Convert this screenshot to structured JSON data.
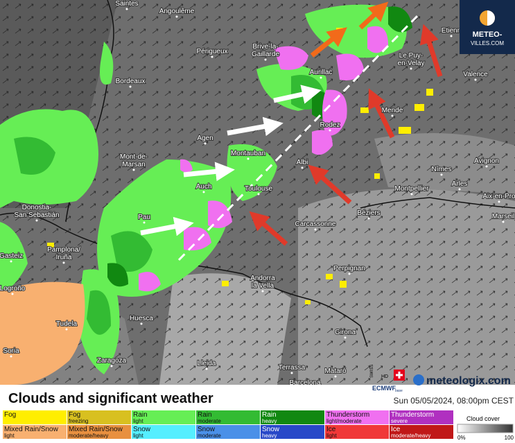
{
  "logo": {
    "line1": "METEO-",
    "line2": "VILLES.COM"
  },
  "cities": [
    {
      "lines": [
        "Saintes"
      ]
    },
    {
      "lines": [
        "Angoulême"
      ]
    },
    {
      "lines": [
        "Périgueux"
      ]
    },
    {
      "lines": [
        "Brive-la-",
        "Gaillarde"
      ]
    },
    {
      "lines": [
        "Aurillac"
      ]
    },
    {
      "lines": [
        "Etienn"
      ]
    },
    {
      "lines": [
        "Le Puy-",
        "en-Velay"
      ]
    },
    {
      "lines": [
        "Valence"
      ]
    },
    {
      "lines": [
        "Bordeaux"
      ]
    },
    {
      "lines": [
        "Mende"
      ]
    },
    {
      "lines": [
        "Rodez"
      ]
    },
    {
      "lines": [
        "Agen"
      ]
    },
    {
      "lines": [
        "Mont-de-",
        "Marsan"
      ]
    },
    {
      "lines": [
        "Montauban"
      ]
    },
    {
      "lines": [
        "Albi"
      ]
    },
    {
      "lines": [
        "Nîmes"
      ]
    },
    {
      "lines": [
        "Avignon"
      ]
    },
    {
      "lines": [
        "Auch"
      ]
    },
    {
      "lines": [
        "Toulouse"
      ]
    },
    {
      "lines": [
        "Arles"
      ]
    },
    {
      "lines": [
        "Montpellier"
      ]
    },
    {
      "lines": [
        "Aix-en-Pro"
      ]
    },
    {
      "lines": [
        "Béziers"
      ]
    },
    {
      "lines": [
        "Marseil"
      ]
    },
    {
      "lines": [
        "Carcassonne"
      ]
    },
    {
      "lines": [
        "Pau"
      ]
    },
    {
      "lines": [
        "Donostia-",
        "San Sebastián"
      ]
    },
    {
      "lines": [
        "Pamplona/",
        "Iruña"
      ]
    },
    {
      "lines": [
        "Gasteiz"
      ]
    },
    {
      "lines": [
        "Perpignan"
      ]
    },
    {
      "lines": [
        "Andorra",
        "la Vella"
      ]
    },
    {
      "lines": [
        "Logroño"
      ]
    },
    {
      "lines": [
        "Huesca"
      ]
    },
    {
      "lines": [
        "Tudela"
      ]
    },
    {
      "lines": [
        "Girona"
      ]
    },
    {
      "lines": [
        "Soria"
      ]
    },
    {
      "lines": [
        "Zaragoza"
      ]
    },
    {
      "lines": [
        "Lleida"
      ]
    },
    {
      "lines": [
        "Terrassa"
      ]
    },
    {
      "lines": [
        "Mataró"
      ]
    },
    {
      "lines": [
        "Barcelona"
      ]
    }
  ],
  "provider": {
    "swiss": "SWISS",
    "hd": "HD",
    "model": "ECMWF",
    "base": "base"
  },
  "brand": "meteologix.com",
  "title": "Clouds and significant weather",
  "timestamp": "Sun 05/05/2024, 08:00pm CEST",
  "legend": [
    {
      "main": "Fog",
      "color": "#ffee00"
    },
    {
      "main": "Fog",
      "sub": "freezing",
      "color": "#d8c020"
    },
    {
      "main": "Rain",
      "sub": "light",
      "color": "#66ee55"
    },
    {
      "main": "Rain",
      "sub": "moderate",
      "color": "#33bb33"
    },
    {
      "main": "Rain",
      "sub": "heavy",
      "color": "#118811"
    },
    {
      "main": "Thunderstorm",
      "sub": "light/moderate",
      "color": "#f070f0"
    },
    {
      "main": "Thunderstorm",
      "sub": "severe",
      "color": "#b030c0"
    },
    {
      "main": "Mixed Rain/Snow",
      "sub": "light",
      "color": "#f8b070"
    },
    {
      "main": "Mixed Rain/Snow",
      "sub": "moderate/heavy",
      "color": "#e89040"
    },
    {
      "main": "Snow",
      "sub": "light",
      "color": "#55eeff"
    },
    {
      "main": "Snow",
      "sub": "moderate",
      "color": "#4a90e8"
    },
    {
      "main": "Snow",
      "sub": "heavy",
      "color": "#2848c8"
    },
    {
      "main": "Ice",
      "sub": "light",
      "color": "#f03838"
    },
    {
      "main": "Ice",
      "sub": "moderate/heavy",
      "color": "#c01818"
    }
  ],
  "cloud_cover": {
    "label": "Cloud cover",
    "min": "0%",
    "max": "100"
  }
}
